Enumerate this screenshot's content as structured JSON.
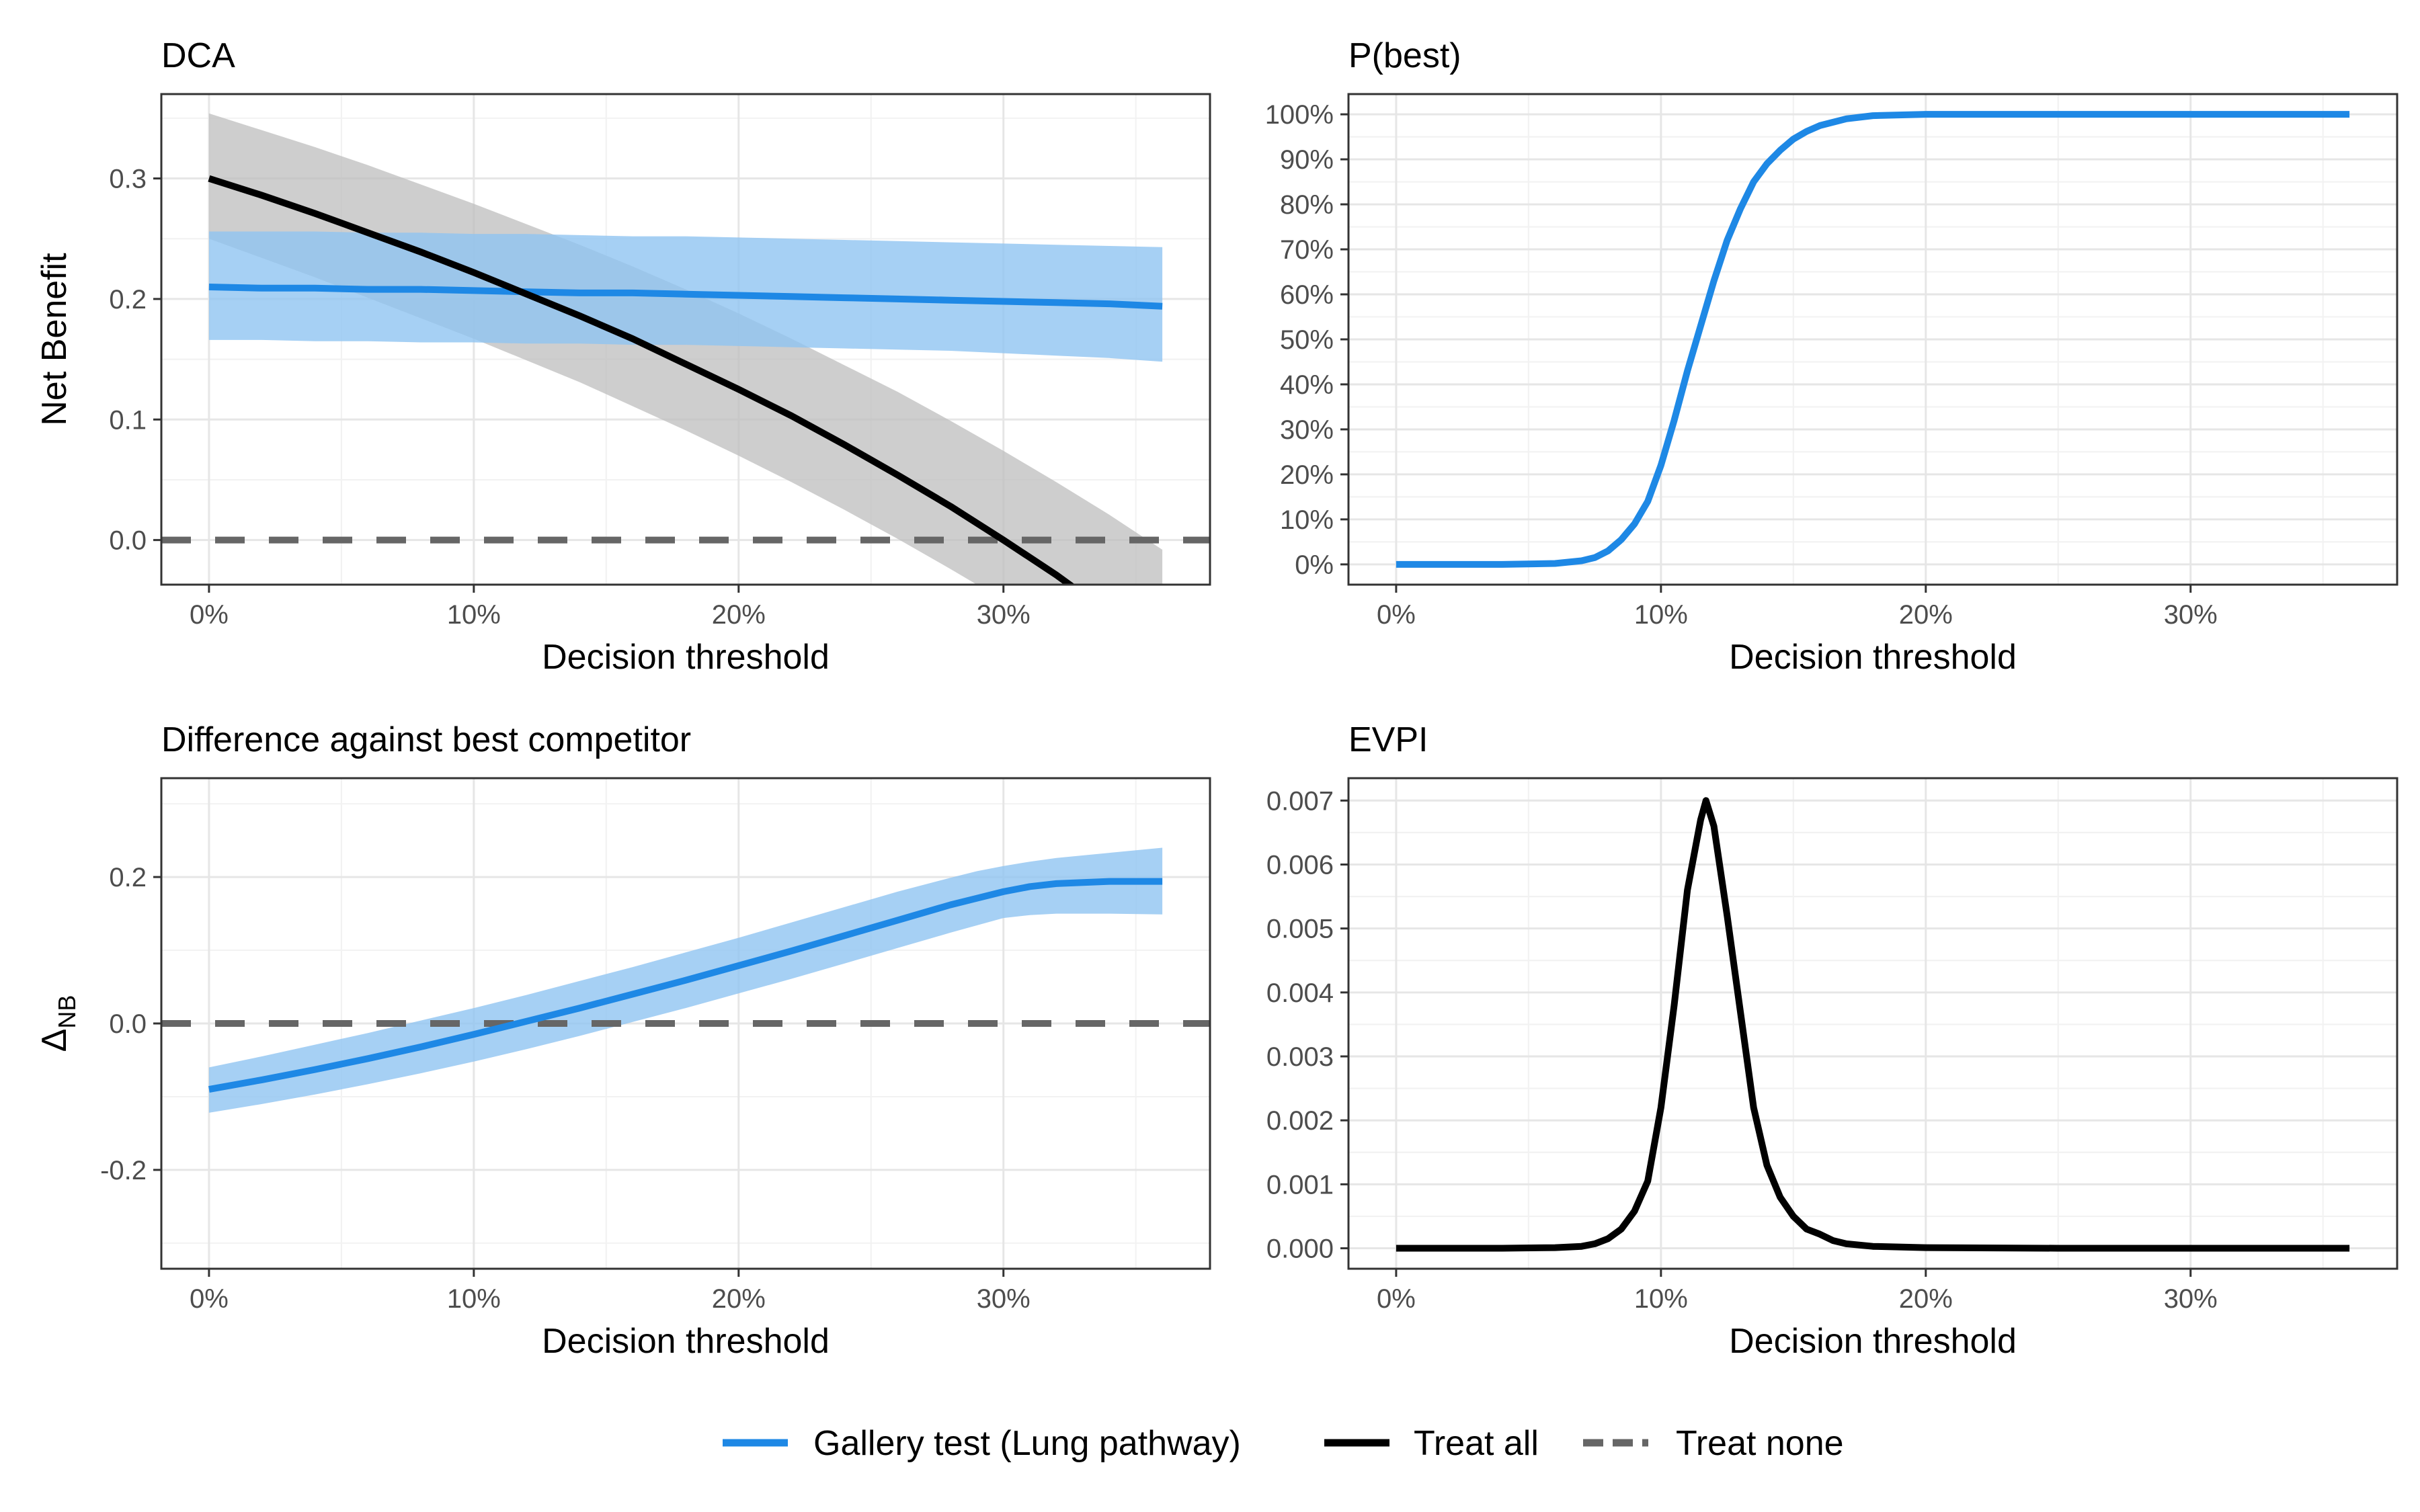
{
  "colors": {
    "gallery": "#1E88E5",
    "gallery_band": "#90C4F1",
    "treat_all": "#000000",
    "treat_all_band": "#BDBDBD",
    "treat_none": "#666666",
    "grid_major": "#E6E6E6",
    "grid_minor": "#F2F2F2",
    "panel_border": "#333333"
  },
  "legend": {
    "items": [
      {
        "label": "Gallery test (Lung pathway)",
        "color": "#1E88E5",
        "dash": false
      },
      {
        "label": "Treat all",
        "color": "#000000",
        "dash": false
      },
      {
        "label": "Treat none",
        "color": "#666666",
        "dash": true
      }
    ]
  },
  "chart_data": [
    {
      "id": "dca",
      "type": "line",
      "title": "DCA",
      "xlabel": "Decision threshold",
      "ylabel": "Net Benefit",
      "xlim": [
        -0.018,
        0.378
      ],
      "ylim": [
        -0.037,
        0.37
      ],
      "xticks": [
        0,
        0.1,
        0.2,
        0.3
      ],
      "xtick_labels": [
        "0%",
        "10%",
        "20%",
        "30%"
      ],
      "yticks": [
        0,
        0.1,
        0.2,
        0.3
      ],
      "ytick_labels": [
        "0.0",
        "0.1",
        "0.2",
        "0.3"
      ],
      "grid": true,
      "x": [
        0,
        0.02,
        0.04,
        0.06,
        0.08,
        0.1,
        0.12,
        0.14,
        0.16,
        0.18,
        0.2,
        0.22,
        0.24,
        0.26,
        0.28,
        0.3,
        0.32,
        0.34,
        0.36
      ],
      "series": [
        {
          "name": "Treat all",
          "color": "#000000",
          "values": [
            0.3,
            0.286,
            0.271,
            0.255,
            0.239,
            0.222,
            0.204,
            0.186,
            0.167,
            0.146,
            0.125,
            0.103,
            0.079,
            0.054,
            0.028,
            0.0,
            -0.029,
            -0.061,
            -0.094
          ],
          "lower": [
            0.25,
            0.234,
            0.218,
            0.201,
            0.184,
            0.167,
            0.149,
            0.131,
            0.111,
            0.091,
            0.07,
            0.048,
            0.025,
            0.001,
            -0.024,
            -0.05,
            -0.078,
            -0.108,
            -0.14
          ],
          "upper": [
            0.354,
            0.34,
            0.326,
            0.311,
            0.295,
            0.279,
            0.262,
            0.245,
            0.227,
            0.208,
            0.188,
            0.167,
            0.145,
            0.123,
            0.099,
            0.074,
            0.048,
            0.021,
            -0.008
          ]
        },
        {
          "name": "Gallery test (Lung pathway)",
          "color": "#1E88E5",
          "values": [
            0.21,
            0.209,
            0.209,
            0.208,
            0.208,
            0.207,
            0.206,
            0.205,
            0.205,
            0.204,
            0.203,
            0.202,
            0.201,
            0.2,
            0.199,
            0.198,
            0.197,
            0.196,
            0.194
          ],
          "lower": [
            0.166,
            0.166,
            0.165,
            0.165,
            0.164,
            0.164,
            0.163,
            0.163,
            0.162,
            0.162,
            0.161,
            0.16,
            0.159,
            0.158,
            0.157,
            0.155,
            0.153,
            0.151,
            0.148
          ],
          "upper": [
            0.256,
            0.256,
            0.256,
            0.255,
            0.255,
            0.254,
            0.254,
            0.253,
            0.252,
            0.252,
            0.251,
            0.25,
            0.249,
            0.248,
            0.247,
            0.246,
            0.245,
            0.244,
            0.243
          ]
        },
        {
          "name": "Treat none",
          "color": "#666666",
          "dashed": true,
          "hline": 0
        }
      ]
    },
    {
      "id": "pbest",
      "type": "line",
      "title": "P(best)",
      "xlabel": "Decision threshold",
      "ylabel": "",
      "xlim": [
        -0.018,
        0.378
      ],
      "ylim": [
        -0.045,
        1.045
      ],
      "xticks": [
        0,
        0.1,
        0.2,
        0.3
      ],
      "xtick_labels": [
        "0%",
        "10%",
        "20%",
        "30%"
      ],
      "yticks": [
        0,
        0.1,
        0.2,
        0.3,
        0.4,
        0.5,
        0.6,
        0.7,
        0.8,
        0.9,
        1.0
      ],
      "ytick_labels": [
        "0%",
        "10%",
        "20%",
        "30%",
        "40%",
        "50%",
        "60%",
        "70%",
        "80%",
        "90%",
        "100%"
      ],
      "grid": true,
      "x": [
        0,
        0.02,
        0.04,
        0.06,
        0.07,
        0.075,
        0.08,
        0.085,
        0.09,
        0.095,
        0.1,
        0.105,
        0.11,
        0.115,
        0.12,
        0.125,
        0.13,
        0.135,
        0.14,
        0.145,
        0.15,
        0.155,
        0.16,
        0.17,
        0.18,
        0.2,
        0.25,
        0.3,
        0.36
      ],
      "series": [
        {
          "name": "Gallery test (Lung pathway)",
          "color": "#1E88E5",
          "values": [
            0,
            0,
            0,
            0.002,
            0.008,
            0.015,
            0.03,
            0.055,
            0.09,
            0.14,
            0.22,
            0.32,
            0.43,
            0.53,
            0.63,
            0.72,
            0.79,
            0.85,
            0.89,
            0.92,
            0.945,
            0.962,
            0.975,
            0.99,
            0.997,
            1.0,
            1.0,
            1.0,
            1.0
          ]
        }
      ]
    },
    {
      "id": "diff",
      "type": "line",
      "title": "Difference against best competitor",
      "xlabel": "Decision threshold",
      "ylabel": "Δ",
      "ylabel_sub": "NB",
      "xlim": [
        -0.018,
        0.378
      ],
      "ylim": [
        -0.335,
        0.335
      ],
      "xticks": [
        0,
        0.1,
        0.2,
        0.3
      ],
      "xtick_labels": [
        "0%",
        "10%",
        "20%",
        "30%"
      ],
      "yticks": [
        -0.2,
        0,
        0.2
      ],
      "ytick_labels": [
        "-0.2",
        "0.0",
        "0.2"
      ],
      "grid": true,
      "x": [
        0,
        0.02,
        0.04,
        0.06,
        0.08,
        0.1,
        0.12,
        0.14,
        0.16,
        0.18,
        0.2,
        0.22,
        0.24,
        0.26,
        0.28,
        0.29,
        0.3,
        0.31,
        0.32,
        0.34,
        0.36
      ],
      "series": [
        {
          "name": "Gallery test (Lung pathway)",
          "color": "#1E88E5",
          "values": [
            -0.09,
            -0.077,
            -0.063,
            -0.048,
            -0.032,
            -0.015,
            0.003,
            0.021,
            0.04,
            0.059,
            0.079,
            0.099,
            0.12,
            0.141,
            0.162,
            0.171,
            0.18,
            0.187,
            0.191,
            0.194,
            0.194
          ],
          "lower": [
            -0.122,
            -0.11,
            -0.097,
            -0.083,
            -0.068,
            -0.052,
            -0.035,
            -0.017,
            0.002,
            0.021,
            0.041,
            0.061,
            0.082,
            0.103,
            0.124,
            0.134,
            0.144,
            0.148,
            0.15,
            0.15,
            0.149
          ],
          "upper": [
            -0.06,
            -0.045,
            -0.029,
            -0.013,
            0.004,
            0.021,
            0.039,
            0.058,
            0.077,
            0.097,
            0.117,
            0.138,
            0.159,
            0.18,
            0.199,
            0.208,
            0.215,
            0.221,
            0.226,
            0.233,
            0.24
          ]
        },
        {
          "name": "Treat none",
          "color": "#666666",
          "dashed": true,
          "hline": 0
        }
      ]
    },
    {
      "id": "evpi",
      "type": "line",
      "title": "EVPI",
      "xlabel": "Decision threshold",
      "ylabel": "",
      "xlim": [
        -0.018,
        0.378
      ],
      "ylim": [
        -0.00032,
        0.00735
      ],
      "xticks": [
        0,
        0.1,
        0.2,
        0.3
      ],
      "xtick_labels": [
        "0%",
        "10%",
        "20%",
        "30%"
      ],
      "yticks": [
        0,
        0.001,
        0.002,
        0.003,
        0.004,
        0.005,
        0.006,
        0.007
      ],
      "ytick_labels": [
        "0.000",
        "0.001",
        "0.002",
        "0.003",
        "0.004",
        "0.005",
        "0.006",
        "0.007"
      ],
      "grid": true,
      "x": [
        0,
        0.04,
        0.06,
        0.07,
        0.075,
        0.08,
        0.085,
        0.09,
        0.095,
        0.1,
        0.105,
        0.11,
        0.115,
        0.117,
        0.12,
        0.125,
        0.13,
        0.135,
        0.14,
        0.145,
        0.15,
        0.155,
        0.16,
        0.165,
        0.17,
        0.18,
        0.2,
        0.25,
        0.3,
        0.36
      ],
      "series": [
        {
          "name": "Treat all",
          "color": "#000000",
          "values": [
            0,
            0,
            1e-05,
            3e-05,
            7e-05,
            0.00015,
            0.0003,
            0.00058,
            0.00105,
            0.0022,
            0.0038,
            0.0056,
            0.0067,
            0.007,
            0.0066,
            0.0052,
            0.0037,
            0.0022,
            0.0013,
            0.0008,
            0.0005,
            0.0003,
            0.00022,
            0.00012,
            7e-05,
            3e-05,
            1e-05,
            0,
            0,
            0
          ]
        }
      ]
    }
  ]
}
